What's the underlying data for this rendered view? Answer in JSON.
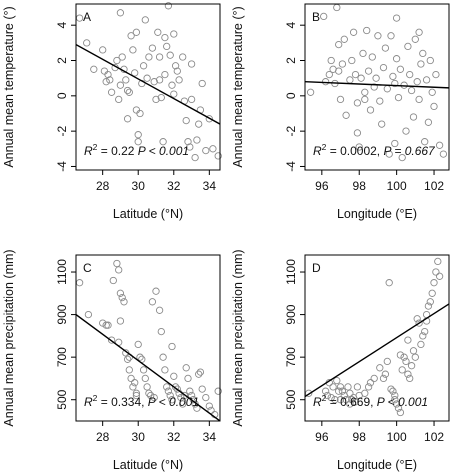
{
  "chart_data": [
    {
      "type": "scatter",
      "panel_label": "A",
      "xlabel": "Latitude (°N)",
      "ylabel": "Annual mean temperature (°)",
      "xlim": [
        26.5,
        34.6
      ],
      "ylim": [
        -4.2,
        5.2
      ],
      "xticks": [
        28,
        30,
        32,
        34
      ],
      "yticks": [
        -4,
        -2,
        0,
        2,
        4
      ],
      "stat_r2": "= 0.22",
      "stat_p": "P < 0.001",
      "regression": {
        "x": [
          26.5,
          34.6
        ],
        "y": [
          2.9,
          -1.6
        ]
      },
      "points": [
        [
          26.7,
          4.4
        ],
        [
          27.1,
          3.0
        ],
        [
          27.5,
          1.5
        ],
        [
          28.0,
          2.6
        ],
        [
          28.1,
          1.4
        ],
        [
          28.2,
          0.8
        ],
        [
          28.3,
          1.2
        ],
        [
          28.4,
          0.9
        ],
        [
          28.5,
          0.2
        ],
        [
          28.7,
          1.6
        ],
        [
          28.8,
          2.0
        ],
        [
          28.9,
          -0.2
        ],
        [
          29.0,
          0.6
        ],
        [
          29.0,
          4.7
        ],
        [
          29.1,
          2.2
        ],
        [
          29.2,
          1.5
        ],
        [
          29.3,
          0.9
        ],
        [
          29.4,
          0.3
        ],
        [
          29.5,
          0.2
        ],
        [
          29.6,
          3.4
        ],
        [
          29.7,
          2.6
        ],
        [
          29.8,
          1.3
        ],
        [
          29.9,
          3.6
        ],
        [
          29.9,
          -0.8
        ],
        [
          30.0,
          -2.2
        ],
        [
          30.0,
          -2.6
        ],
        [
          30.1,
          -1.0
        ],
        [
          30.2,
          0.7
        ],
        [
          30.4,
          4.3
        ],
        [
          30.5,
          1.0
        ],
        [
          30.6,
          2.2
        ],
        [
          30.8,
          2.7
        ],
        [
          30.9,
          0.8
        ],
        [
          31.0,
          -0.2
        ],
        [
          31.1,
          3.6
        ],
        [
          31.2,
          2.2
        ],
        [
          31.3,
          -0.1
        ],
        [
          31.4,
          -2.6
        ],
        [
          31.5,
          3.3
        ],
        [
          31.5,
          1.2
        ],
        [
          31.6,
          2.8
        ],
        [
          31.7,
          5.1
        ],
        [
          31.8,
          2.3
        ],
        [
          31.9,
          0.6
        ],
        [
          32.0,
          3.5
        ],
        [
          32.0,
          0.1
        ],
        [
          32.1,
          1.7
        ],
        [
          32.2,
          1.4
        ],
        [
          32.3,
          0.9
        ],
        [
          32.5,
          2.2
        ],
        [
          32.6,
          -0.3
        ],
        [
          32.8,
          -2.6
        ],
        [
          32.9,
          -2.9
        ],
        [
          33.0,
          1.8
        ],
        [
          33.2,
          -3.5
        ],
        [
          33.3,
          -2.5
        ],
        [
          33.4,
          -1.6
        ],
        [
          33.5,
          -0.8
        ],
        [
          33.6,
          0.7
        ],
        [
          33.8,
          -3.1
        ],
        [
          34.0,
          -1.3
        ],
        [
          34.2,
          -3.0
        ],
        [
          34.5,
          -3.4
        ],
        [
          31.2,
          0.9
        ],
        [
          30.3,
          1.7
        ],
        [
          29.4,
          -1.3
        ],
        [
          32.7,
          -1.4
        ],
        [
          33.0,
          -0.2
        ]
      ]
    },
    {
      "type": "scatter",
      "panel_label": "B",
      "xlabel": "Longitude (°E)",
      "ylabel": "Annual mean temperature (°)",
      "xlim": [
        95.1,
        102.8
      ],
      "ylim": [
        -4.2,
        5.2
      ],
      "xticks": [
        96,
        98,
        100,
        102
      ],
      "yticks": [
        -4,
        -2,
        0,
        2,
        4
      ],
      "stat_r2": "= 0.0002,",
      "stat_p": "P = 0.667",
      "regression": {
        "x": [
          95.1,
          102.8
        ],
        "y": [
          0.8,
          0.45
        ]
      },
      "points": [
        [
          95.4,
          0.2
        ],
        [
          96.1,
          4.5
        ],
        [
          96.2,
          0.8
        ],
        [
          96.4,
          1.2
        ],
        [
          96.5,
          2.0
        ],
        [
          96.6,
          1.5
        ],
        [
          96.7,
          0.7
        ],
        [
          96.8,
          5.0
        ],
        [
          96.9,
          2.9
        ],
        [
          97.0,
          -0.2
        ],
        [
          97.1,
          1.8
        ],
        [
          97.2,
          3.2
        ],
        [
          97.3,
          -1.1
        ],
        [
          97.5,
          0.9
        ],
        [
          97.6,
          2.0
        ],
        [
          97.7,
          3.6
        ],
        [
          97.8,
          1.2
        ],
        [
          97.9,
          -0.4
        ],
        [
          97.9,
          -2.1
        ],
        [
          98.0,
          -2.9
        ],
        [
          98.1,
          1.0
        ],
        [
          98.2,
          2.4
        ],
        [
          98.3,
          0.2
        ],
        [
          98.4,
          3.7
        ],
        [
          98.5,
          1.4
        ],
        [
          98.6,
          -0.8
        ],
        [
          98.7,
          2.2
        ],
        [
          98.8,
          0.5
        ],
        [
          98.9,
          1.0
        ],
        [
          99.0,
          3.4
        ],
        [
          99.1,
          -0.3
        ],
        [
          99.2,
          -1.6
        ],
        [
          99.3,
          1.6
        ],
        [
          99.4,
          2.7
        ],
        [
          99.5,
          0.4
        ],
        [
          99.6,
          -3.3
        ],
        [
          99.7,
          3.4
        ],
        [
          99.8,
          1.1
        ],
        [
          99.9,
          -2.7
        ],
        [
          100.0,
          4.4
        ],
        [
          100.0,
          2.1
        ],
        [
          100.1,
          -0.1
        ],
        [
          100.2,
          1.5
        ],
        [
          100.3,
          -3.5
        ],
        [
          100.4,
          0.6
        ],
        [
          100.5,
          -2.0
        ],
        [
          100.6,
          2.8
        ],
        [
          100.7,
          1.2
        ],
        [
          100.8,
          0.3
        ],
        [
          100.9,
          -1.2
        ],
        [
          101.0,
          3.2
        ],
        [
          101.1,
          0.8
        ],
        [
          101.2,
          -0.2
        ],
        [
          101.3,
          1.8
        ],
        [
          101.4,
          2.4
        ],
        [
          101.5,
          -2.6
        ],
        [
          101.6,
          0.9
        ],
        [
          101.7,
          -1.5
        ],
        [
          101.8,
          2.0
        ],
        [
          101.9,
          0.2
        ],
        [
          102.0,
          -0.6
        ],
        [
          102.1,
          1.2
        ],
        [
          102.3,
          -2.8
        ],
        [
          102.5,
          -3.3
        ],
        [
          101.2,
          3.6
        ],
        [
          99.9,
          0.7
        ],
        [
          98.3,
          -0.2
        ],
        [
          96.9,
          1.4
        ]
      ]
    },
    {
      "type": "scatter",
      "panel_label": "C",
      "xlabel": "Latitude (°N)",
      "ylabel": "Annual mean precipitation (mm)",
      "xlim": [
        26.5,
        34.6
      ],
      "ylim": [
        400,
        1180
      ],
      "xticks": [
        28,
        30,
        32,
        34
      ],
      "yticks": [
        500,
        700,
        900,
        1100
      ],
      "stat_r2": "= 0.334,",
      "stat_p": "P < 0.001",
      "regression": {
        "x": [
          26.5,
          34.6
        ],
        "y": [
          900,
          400
        ]
      },
      "points": [
        [
          26.7,
          1050
        ],
        [
          27.2,
          900
        ],
        [
          28.0,
          860
        ],
        [
          28.2,
          850
        ],
        [
          28.3,
          850
        ],
        [
          28.6,
          1060
        ],
        [
          28.8,
          1140
        ],
        [
          28.9,
          1110
        ],
        [
          29.0,
          1000
        ],
        [
          29.1,
          980
        ],
        [
          29.2,
          960
        ],
        [
          29.0,
          870
        ],
        [
          28.9,
          770
        ],
        [
          29.3,
          720
        ],
        [
          29.4,
          690
        ],
        [
          29.5,
          640
        ],
        [
          29.6,
          600
        ],
        [
          29.7,
          560
        ],
        [
          29.8,
          580
        ],
        [
          29.9,
          530
        ],
        [
          29.9,
          520
        ],
        [
          30.0,
          760
        ],
        [
          30.1,
          700
        ],
        [
          30.2,
          690
        ],
        [
          30.3,
          640
        ],
        [
          30.4,
          600
        ],
        [
          30.5,
          560
        ],
        [
          30.6,
          530
        ],
        [
          30.7,
          520
        ],
        [
          30.9,
          510
        ],
        [
          31.0,
          1010
        ],
        [
          31.2,
          920
        ],
        [
          31.3,
          820
        ],
        [
          31.4,
          700
        ],
        [
          31.5,
          640
        ],
        [
          31.6,
          560
        ],
        [
          31.7,
          540
        ],
        [
          31.8,
          520
        ],
        [
          31.9,
          500
        ],
        [
          32.0,
          610
        ],
        [
          32.1,
          560
        ],
        [
          32.2,
          550
        ],
        [
          32.3,
          530
        ],
        [
          32.4,
          510
        ],
        [
          32.5,
          480
        ],
        [
          32.6,
          520
        ],
        [
          32.7,
          650
        ],
        [
          32.8,
          600
        ],
        [
          32.9,
          540
        ],
        [
          33.0,
          520
        ],
        [
          33.1,
          500
        ],
        [
          33.2,
          480
        ],
        [
          33.3,
          460
        ],
        [
          33.5,
          630
        ],
        [
          33.6,
          550
        ],
        [
          33.8,
          510
        ],
        [
          34.0,
          470
        ],
        [
          34.1,
          450
        ],
        [
          34.3,
          430
        ],
        [
          34.5,
          540
        ],
        [
          28.5,
          780
        ],
        [
          29.5,
          700
        ],
        [
          30.8,
          960
        ],
        [
          31.9,
          750
        ],
        [
          33.4,
          620
        ]
      ]
    },
    {
      "type": "scatter",
      "panel_label": "D",
      "xlabel": "Longitude (°E)",
      "ylabel": "Annual mean precipitation (mm)",
      "xlim": [
        95.1,
        102.8
      ],
      "ylim": [
        400,
        1180
      ],
      "xticks": [
        96,
        98,
        100,
        102
      ],
      "yticks": [
        500,
        700,
        900,
        1100
      ],
      "stat_r2": "= 0.669,",
      "stat_p": "P < 0.001",
      "regression": {
        "x": [
          95.1,
          102.8
        ],
        "y": [
          515,
          950
        ]
      },
      "points": [
        [
          95.3,
          530
        ],
        [
          96.2,
          540
        ],
        [
          96.3,
          520
        ],
        [
          96.5,
          510
        ],
        [
          96.6,
          560
        ],
        [
          96.7,
          500
        ],
        [
          96.8,
          590
        ],
        [
          96.9,
          540
        ],
        [
          97.0,
          560
        ],
        [
          97.0,
          500
        ],
        [
          97.1,
          540
        ],
        [
          97.2,
          520
        ],
        [
          97.3,
          500
        ],
        [
          97.4,
          560
        ],
        [
          97.5,
          480
        ],
        [
          97.5,
          530
        ],
        [
          97.6,
          500
        ],
        [
          97.7,
          510
        ],
        [
          97.8,
          490
        ],
        [
          98.0,
          520
        ],
        [
          98.3,
          530
        ],
        [
          98.5,
          560
        ],
        [
          98.8,
          600
        ],
        [
          99.1,
          650
        ],
        [
          99.3,
          600
        ],
        [
          99.4,
          620
        ],
        [
          99.5,
          680
        ],
        [
          99.6,
          1050
        ],
        [
          99.7,
          550
        ],
        [
          99.8,
          540
        ],
        [
          99.9,
          500
        ],
        [
          100.0,
          480
        ],
        [
          100.1,
          460
        ],
        [
          100.2,
          440
        ],
        [
          100.2,
          710
        ],
        [
          100.3,
          640
        ],
        [
          100.4,
          700
        ],
        [
          100.5,
          680
        ],
        [
          100.6,
          620
        ],
        [
          100.7,
          600
        ],
        [
          100.8,
          660
        ],
        [
          100.9,
          730
        ],
        [
          101.0,
          700
        ],
        [
          101.1,
          880
        ],
        [
          101.2,
          860
        ],
        [
          101.3,
          760
        ],
        [
          101.4,
          800
        ],
        [
          101.5,
          820
        ],
        [
          101.6,
          900
        ],
        [
          101.7,
          940
        ],
        [
          101.8,
          960
        ],
        [
          101.9,
          1000
        ],
        [
          102.0,
          1050
        ],
        [
          102.1,
          1100
        ],
        [
          102.2,
          1150
        ],
        [
          102.3,
          1080
        ],
        [
          101.6,
          870
        ],
        [
          100.6,
          780
        ],
        [
          99.9,
          520
        ],
        [
          98.6,
          580
        ],
        [
          97.9,
          560
        ],
        [
          96.4,
          580
        ]
      ]
    }
  ]
}
